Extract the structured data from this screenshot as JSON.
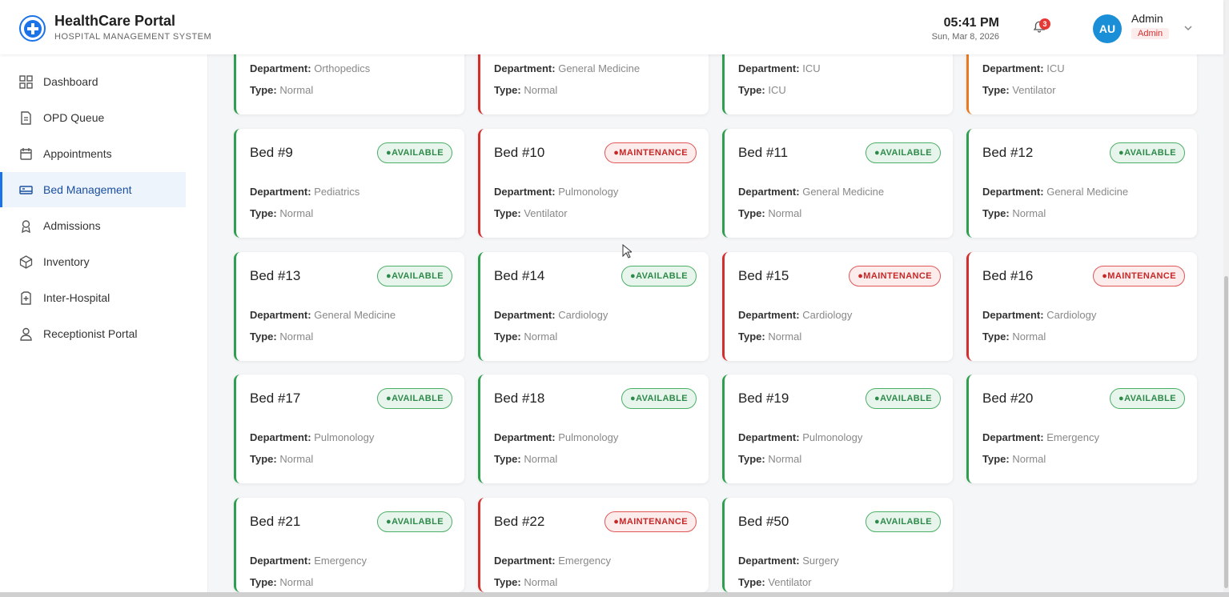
{
  "header": {
    "title": "HealthCare Portal",
    "subtitle": "HOSPITAL MANAGEMENT SYSTEM",
    "time": "05:41 PM",
    "date": "Sun, Mar 8, 2026",
    "notification_count": "3",
    "avatar_initials": "AU",
    "user_name": "Admin",
    "user_role": "Admin"
  },
  "sidebar": {
    "items": [
      {
        "label": "Dashboard",
        "icon": "grid-icon"
      },
      {
        "label": "OPD Queue",
        "icon": "document-icon"
      },
      {
        "label": "Appointments",
        "icon": "calendar-icon"
      },
      {
        "label": "Bed Management",
        "icon": "bed-icon",
        "active": true
      },
      {
        "label": "Admissions",
        "icon": "award-icon"
      },
      {
        "label": "Inventory",
        "icon": "box-icon"
      },
      {
        "label": "Inter-Hospital",
        "icon": "hospital-icon"
      },
      {
        "label": "Receptionist Portal",
        "icon": "user-icon"
      }
    ]
  },
  "labels": {
    "department": "Department:",
    "type": "Type:"
  },
  "colors": {
    "available": "#2e9e4f",
    "maintenance": "#d32f2f",
    "occupied": "#e97a20",
    "accent": "#1a73e8"
  },
  "partial_cards": [
    {
      "department": "Orthopedics",
      "type": "Normal",
      "status": "available"
    },
    {
      "department": "General Medicine",
      "type": "Normal",
      "status": "maintenance"
    },
    {
      "department": "ICU",
      "type": "ICU",
      "status": "available"
    },
    {
      "department": "ICU",
      "type": "Ventilator",
      "status": "occupied"
    }
  ],
  "beds": [
    {
      "name": "Bed #9",
      "status": "available",
      "status_label": "●AVAILABLE",
      "department": "Pediatrics",
      "type": "Normal"
    },
    {
      "name": "Bed #10",
      "status": "maintenance",
      "status_label": "●MAINTENANCE",
      "department": "Pulmonology",
      "type": "Ventilator"
    },
    {
      "name": "Bed #11",
      "status": "available",
      "status_label": "●AVAILABLE",
      "department": "General Medicine",
      "type": "Normal"
    },
    {
      "name": "Bed #12",
      "status": "available",
      "status_label": "●AVAILABLE",
      "department": "General Medicine",
      "type": "Normal"
    },
    {
      "name": "Bed #13",
      "status": "available",
      "status_label": "●AVAILABLE",
      "department": "General Medicine",
      "type": "Normal"
    },
    {
      "name": "Bed #14",
      "status": "available",
      "status_label": "●AVAILABLE",
      "department": "Cardiology",
      "type": "Normal"
    },
    {
      "name": "Bed #15",
      "status": "maintenance",
      "status_label": "●MAINTENANCE",
      "department": "Cardiology",
      "type": "Normal"
    },
    {
      "name": "Bed #16",
      "status": "maintenance",
      "status_label": "●MAINTENANCE",
      "department": "Cardiology",
      "type": "Normal"
    },
    {
      "name": "Bed #17",
      "status": "available",
      "status_label": "●AVAILABLE",
      "department": "Pulmonology",
      "type": "Normal"
    },
    {
      "name": "Bed #18",
      "status": "available",
      "status_label": "●AVAILABLE",
      "department": "Pulmonology",
      "type": "Normal"
    },
    {
      "name": "Bed #19",
      "status": "available",
      "status_label": "●AVAILABLE",
      "department": "Pulmonology",
      "type": "Normal"
    },
    {
      "name": "Bed #20",
      "status": "available",
      "status_label": "●AVAILABLE",
      "department": "Emergency",
      "type": "Normal"
    },
    {
      "name": "Bed #21",
      "status": "available",
      "status_label": "●AVAILABLE",
      "department": "Emergency",
      "type": "Normal"
    },
    {
      "name": "Bed #22",
      "status": "maintenance",
      "status_label": "●MAINTENANCE",
      "department": "Emergency",
      "type": "Normal"
    },
    {
      "name": "Bed #50",
      "status": "available",
      "status_label": "●AVAILABLE",
      "department": "Surgery",
      "type": "Ventilator"
    }
  ]
}
